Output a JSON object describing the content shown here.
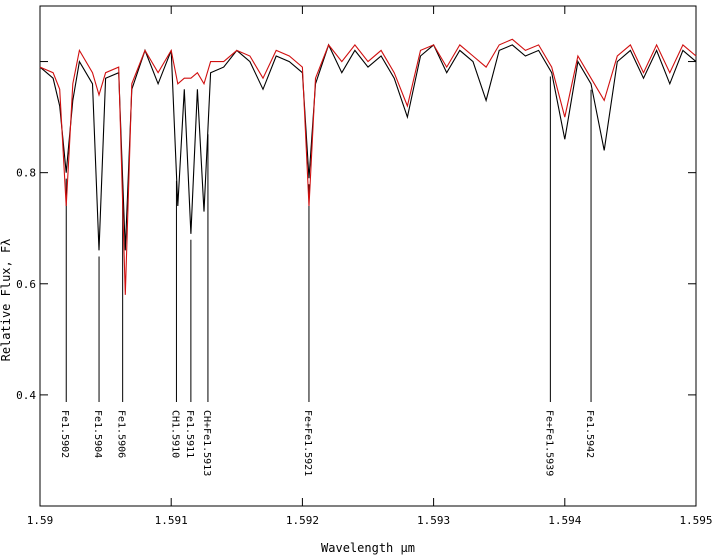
{
  "chart_data": {
    "type": "line",
    "title": "",
    "xlabel": "Wavelength μm",
    "ylabel": "Relative Flux, Fλ",
    "xlim": [
      1.59,
      1.595
    ],
    "ylim": [
      0.2,
      1.1
    ],
    "x_ticks": [
      1.59,
      1.591,
      1.592,
      1.593,
      1.594,
      1.595
    ],
    "x_tick_labels": [
      "1.59",
      "1.591",
      "1.592",
      "1.593",
      "1.594",
      "1.595"
    ],
    "y_ticks": [
      0.4,
      0.6,
      0.8,
      1.0
    ],
    "y_tick_labels": [
      "0.4",
      "0.6",
      "0.8",
      ""
    ],
    "colors": {
      "observed": "#000000",
      "model": "#d01010"
    },
    "grid": false,
    "legend": "none",
    "series": [
      {
        "key": "observed",
        "x": [
          1.59,
          1.5901,
          1.59015,
          1.5902,
          1.59025,
          1.5903,
          1.5904,
          1.59045,
          1.5905,
          1.5906,
          1.59065,
          1.5907,
          1.5908,
          1.5909,
          1.591,
          1.59105,
          1.5911,
          1.59115,
          1.5912,
          1.59125,
          1.5913,
          1.5914,
          1.5915,
          1.5916,
          1.5917,
          1.5918,
          1.5919,
          1.592,
          1.59205,
          1.5921,
          1.5922,
          1.5923,
          1.5924,
          1.5925,
          1.5926,
          1.5927,
          1.5928,
          1.5929,
          1.593,
          1.5931,
          1.5932,
          1.5933,
          1.5934,
          1.5935,
          1.5936,
          1.5937,
          1.5938,
          1.5939,
          1.594,
          1.5941,
          1.5942,
          1.5943,
          1.5944,
          1.5945,
          1.5946,
          1.5947,
          1.5948,
          1.5949,
          1.595
        ],
        "y": [
          0.99,
          0.97,
          0.92,
          0.8,
          0.93,
          1.0,
          0.96,
          0.66,
          0.97,
          0.98,
          0.66,
          0.95,
          1.02,
          0.96,
          1.02,
          0.74,
          0.95,
          0.69,
          0.95,
          0.73,
          0.98,
          0.99,
          1.02,
          1.0,
          0.95,
          1.01,
          1.0,
          0.98,
          0.79,
          0.96,
          1.03,
          0.98,
          1.02,
          0.99,
          1.01,
          0.97,
          0.9,
          1.01,
          1.03,
          0.98,
          1.02,
          1.0,
          0.93,
          1.02,
          1.03,
          1.01,
          1.02,
          0.98,
          0.86,
          1.0,
          0.96,
          0.84,
          1.0,
          1.02,
          0.97,
          1.02,
          0.96,
          1.02,
          1.0
        ]
      },
      {
        "key": "model",
        "x": [
          1.59,
          1.5901,
          1.59015,
          1.5902,
          1.59025,
          1.5903,
          1.5904,
          1.59045,
          1.5905,
          1.5906,
          1.59065,
          1.5907,
          1.5908,
          1.5909,
          1.591,
          1.59105,
          1.5911,
          1.59115,
          1.5912,
          1.59125,
          1.5913,
          1.5914,
          1.5915,
          1.5916,
          1.5917,
          1.5918,
          1.5919,
          1.592,
          1.59205,
          1.5921,
          1.5922,
          1.5923,
          1.5924,
          1.5925,
          1.5926,
          1.5927,
          1.5928,
          1.5929,
          1.593,
          1.5931,
          1.5932,
          1.5933,
          1.5934,
          1.5935,
          1.5936,
          1.5937,
          1.5938,
          1.5939,
          1.594,
          1.5941,
          1.5942,
          1.5943,
          1.5944,
          1.5945,
          1.5946,
          1.5947,
          1.5948,
          1.5949,
          1.595
        ],
        "y": [
          0.99,
          0.98,
          0.95,
          0.74,
          0.96,
          1.02,
          0.98,
          0.94,
          0.98,
          0.99,
          0.58,
          0.96,
          1.02,
          0.98,
          1.02,
          0.96,
          0.97,
          0.97,
          0.98,
          0.96,
          1.0,
          1.0,
          1.02,
          1.01,
          0.97,
          1.02,
          1.01,
          0.99,
          0.74,
          0.97,
          1.03,
          1.0,
          1.03,
          1.0,
          1.02,
          0.98,
          0.92,
          1.02,
          1.03,
          0.99,
          1.03,
          1.01,
          0.99,
          1.03,
          1.04,
          1.02,
          1.03,
          0.99,
          0.9,
          1.01,
          0.97,
          0.93,
          1.01,
          1.03,
          0.98,
          1.03,
          0.98,
          1.03,
          1.01
        ]
      }
    ],
    "line_ids": [
      {
        "label": "Fe1.5902",
        "x": 1.5902
      },
      {
        "label": "Fe1.5904",
        "x": 1.59045
      },
      {
        "label": "Fe1.5906",
        "x": 1.59063
      },
      {
        "label": "CH1.5910",
        "x": 1.59104
      },
      {
        "label": "Fe1.5911",
        "x": 1.59115
      },
      {
        "label": "CH+Fe1.5913",
        "x": 1.59128
      },
      {
        "label": "Fe+Fe1.5921",
        "x": 1.59205
      },
      {
        "label": "Fe+Fe1.5939",
        "x": 1.59389
      },
      {
        "label": "Fe1.5942",
        "x": 1.5942
      }
    ]
  }
}
